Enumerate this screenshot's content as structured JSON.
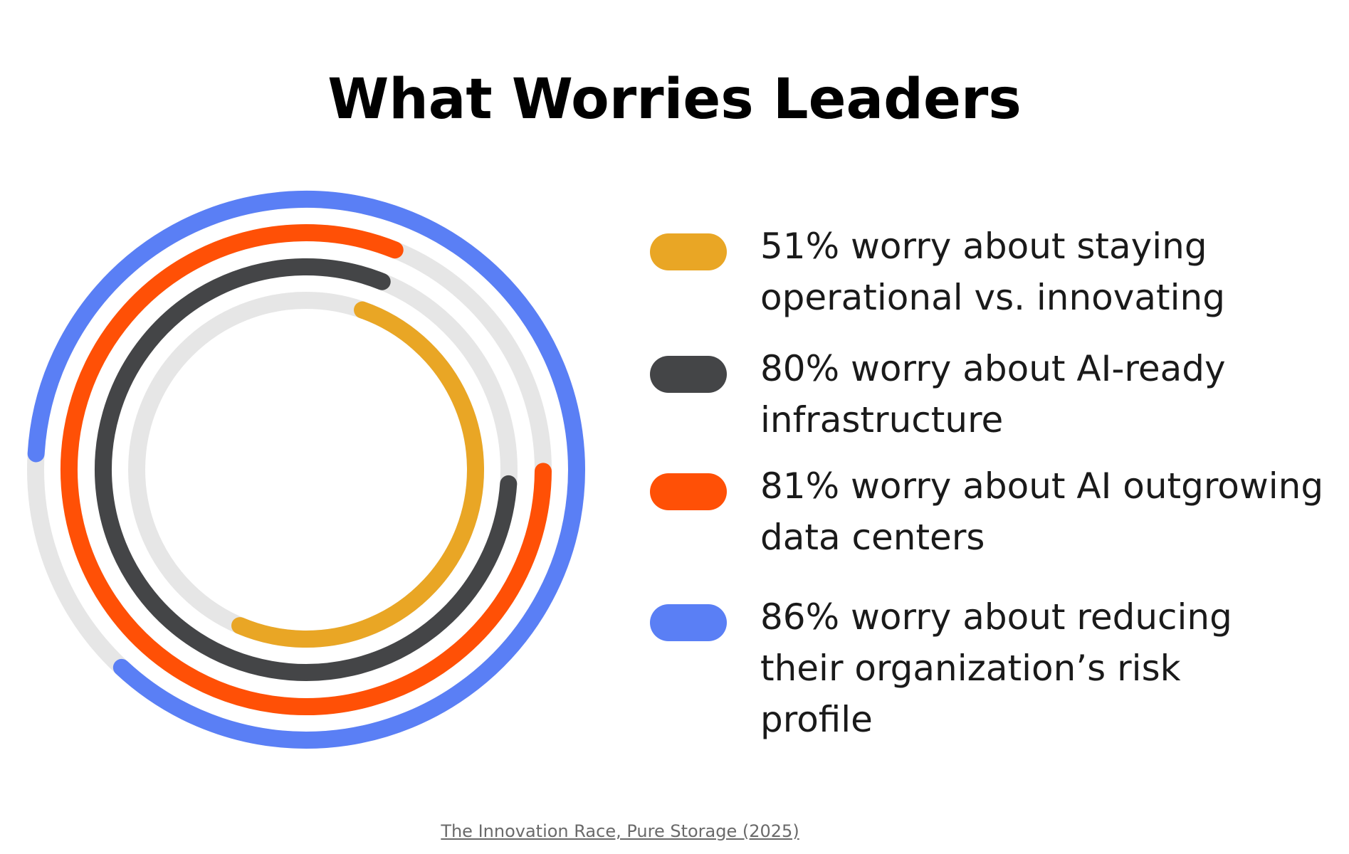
{
  "title": "What Worries Leaders",
  "source": "The Innovation Race, Pure Storage (2025)",
  "colors": {
    "track": "#e6e6e6",
    "ring_51": "#e9a625",
    "ring_80": "#444547",
    "ring_81": "#ff5006",
    "ring_86": "#5a7ff5"
  },
  "legend": [
    {
      "text": "51% worry about staying\noperational vs. innovating",
      "color": "#e9a625"
    },
    {
      "text": "80% worry about AI-ready\ninfrastructure",
      "color": "#444547"
    },
    {
      "text": "81% worry about AI outgrowing\ndata centers",
      "color": "#ff5006"
    },
    {
      "text": "86% worry about reducing\ntheir organization’s risk\nprofile",
      "color": "#5a7ff5"
    }
  ],
  "chart_data": {
    "type": "radial-bar",
    "title": "What Worries Leaders",
    "unit": "%",
    "max": 100,
    "series": [
      {
        "name": "51% worry about staying operational vs. innovating",
        "value": 51,
        "color": "#e9a625"
      },
      {
        "name": "80% worry about AI-ready infrastructure",
        "value": 80,
        "color": "#444547"
      },
      {
        "name": "81% worry about AI outgrowing data centers",
        "value": 81,
        "color": "#ff5006"
      },
      {
        "name": "86% worry about reducing their organization’s risk profile",
        "value": 86,
        "color": "#5a7ff5"
      }
    ]
  }
}
